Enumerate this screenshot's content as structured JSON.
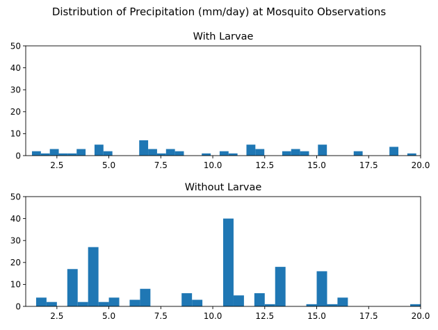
{
  "figure_title": "Distribution of Precipitation (mm/day) at Mosquito Observations",
  "chart_data": [
    {
      "type": "bar",
      "title": "With Larvae",
      "xlabel": "",
      "ylabel": "",
      "xlim": [
        1.0,
        20.0
      ],
      "ylim": [
        0,
        50
      ],
      "xticks": [
        2.5,
        5.0,
        7.5,
        10.0,
        12.5,
        15.0,
        17.5,
        20.0
      ],
      "xtick_labels": [
        "2.5",
        "5.0",
        "7.5",
        "10.0",
        "12.5",
        "15.0",
        "17.5",
        "20.0"
      ],
      "yticks": [
        0,
        10,
        20,
        30,
        40,
        50
      ],
      "ytick_labels": [
        "0",
        "10",
        "20",
        "30",
        "40",
        "50"
      ],
      "bin_width": 0.43,
      "bin_starts": [
        1.3,
        1.73,
        2.16,
        2.59,
        3.02,
        3.45,
        3.88,
        4.31,
        4.74,
        5.17,
        5.6,
        6.03,
        6.46,
        6.89,
        7.32,
        7.75,
        8.18,
        8.61,
        9.04,
        9.47,
        9.9,
        10.33,
        10.76,
        11.19,
        11.62,
        12.05,
        12.48,
        12.91,
        13.34,
        13.77,
        14.2,
        14.63,
        15.06,
        15.49,
        15.92,
        16.35,
        16.78,
        17.21,
        17.64,
        18.07,
        18.5,
        18.93,
        19.36,
        19.79
      ],
      "values": [
        2,
        1,
        3,
        1,
        1,
        3,
        0,
        5,
        2,
        0,
        0,
        0,
        7,
        3,
        1,
        3,
        2,
        0,
        0,
        1,
        0,
        2,
        1,
        0,
        5,
        3,
        0,
        0,
        2,
        3,
        2,
        0,
        5,
        0,
        0,
        0,
        2,
        0,
        0,
        0,
        4,
        0,
        1,
        0
      ],
      "bar_color": "#1f77b4"
    },
    {
      "type": "bar",
      "title": "Without Larvae",
      "xlabel": "",
      "ylabel": "",
      "xlim": [
        1.0,
        20.0
      ],
      "ylim": [
        0,
        50
      ],
      "xticks": [
        2.5,
        5.0,
        7.5,
        10.0,
        12.5,
        15.0,
        17.5,
        20.0
      ],
      "xtick_labels": [
        "2.5",
        "5.0",
        "7.5",
        "10.0",
        "12.5",
        "15.0",
        "17.5",
        "20.0"
      ],
      "yticks": [
        0,
        10,
        20,
        30,
        40,
        50
      ],
      "ytick_labels": [
        "0",
        "10",
        "20",
        "30",
        "40",
        "50"
      ],
      "bin_width": 0.5,
      "bin_starts": [
        1.5,
        2.0,
        2.5,
        3.0,
        3.5,
        4.0,
        4.5,
        5.0,
        5.5,
        6.0,
        6.5,
        7.0,
        7.5,
        8.0,
        8.5,
        9.0,
        9.5,
        10.0,
        10.5,
        11.0,
        11.5,
        12.0,
        12.5,
        13.0,
        13.5,
        14.0,
        14.5,
        15.0,
        15.5,
        16.0,
        16.5,
        17.0,
        17.5,
        18.0,
        18.5,
        19.0,
        19.5
      ],
      "values": [
        4,
        2,
        0,
        17,
        2,
        27,
        2,
        4,
        0,
        3,
        8,
        0,
        0,
        0,
        6,
        3,
        0,
        0,
        40,
        5,
        0,
        6,
        1,
        18,
        0,
        0,
        1,
        16,
        1,
        4,
        0,
        0,
        0,
        0,
        0,
        0,
        1
      ],
      "bar_color": "#1f77b4"
    }
  ]
}
